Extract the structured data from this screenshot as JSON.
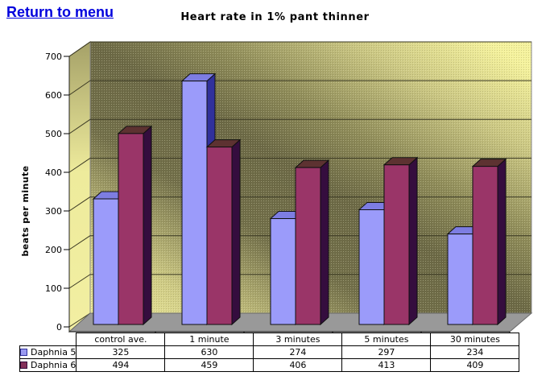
{
  "page": {
    "link_label": "Return to menu"
  },
  "chart_data": {
    "type": "bar",
    "style": "3d-column",
    "title": "Heart rate in 1% pant thinner",
    "ylabel": "beats per minute",
    "xlabel": "",
    "categories": [
      "control ave.",
      "1 minute",
      "3 minutes",
      "5 minutes",
      "30 minutes"
    ],
    "series": [
      {
        "name": "Daphnia 5",
        "values": [
          325,
          630,
          274,
          297,
          234
        ],
        "color": "#9999FF",
        "key_color": "#9a9af0",
        "faces": {
          "front": "#9b9bfa",
          "top": "#7d7de2",
          "side": "#30309c"
        }
      },
      {
        "name": "Daphnia 6",
        "values": [
          494,
          459,
          406,
          413,
          409
        ],
        "color": "#993366",
        "key_color": "#84305a",
        "faces": {
          "front": "#9a3568",
          "top": "#5d3231",
          "side": "#350d3e"
        }
      }
    ],
    "ylim": [
      0,
      700
    ],
    "ytick_step": 100,
    "grid": true,
    "legend_position": "bottom-left-table",
    "background": {
      "wall_dark": "#6b6845",
      "wall_light": "#f5f2a2",
      "floor": "#999999"
    }
  }
}
